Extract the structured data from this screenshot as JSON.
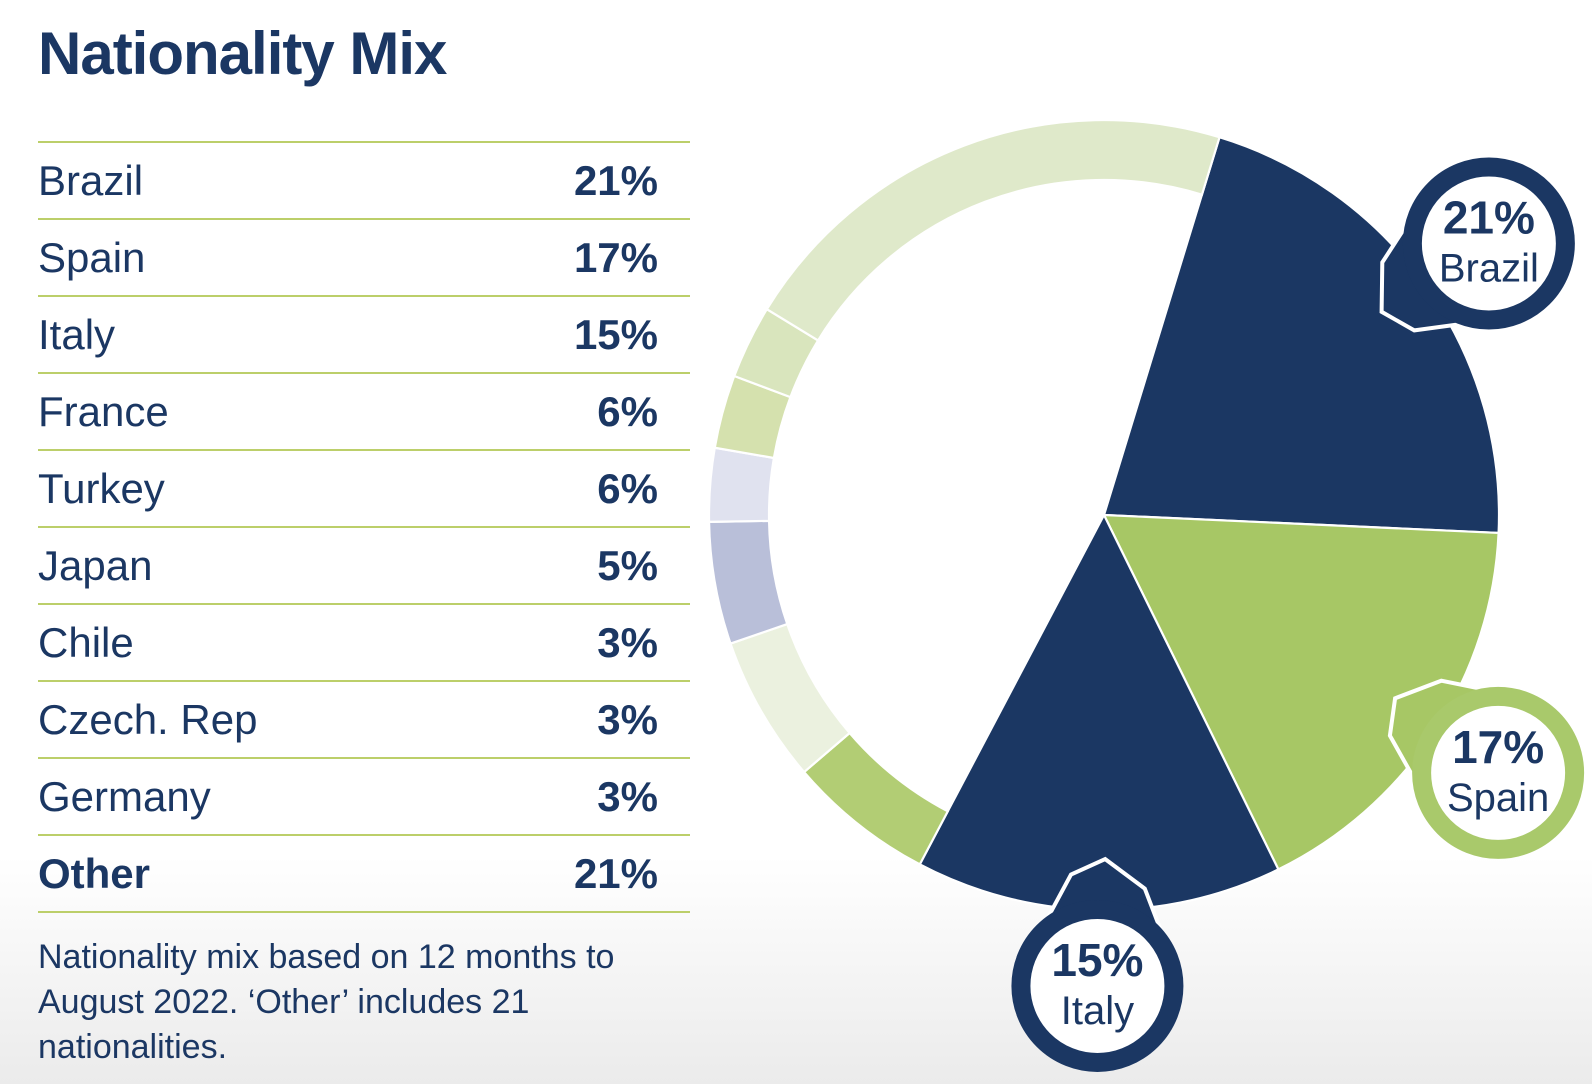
{
  "page": {
    "title": "Nationality Mix"
  },
  "table": {
    "rows": [
      {
        "name": "Brazil",
        "value": "21%",
        "bold": false
      },
      {
        "name": "Spain",
        "value": "17%",
        "bold": false
      },
      {
        "name": "Italy",
        "value": "15%",
        "bold": false
      },
      {
        "name": "France",
        "value": "6%",
        "bold": false
      },
      {
        "name": "Turkey",
        "value": "6%",
        "bold": false
      },
      {
        "name": "Japan",
        "value": "5%",
        "bold": false
      },
      {
        "name": "Chile",
        "value": "3%",
        "bold": false
      },
      {
        "name": "Czech. Rep",
        "value": "3%",
        "bold": false
      },
      {
        "name": "Germany",
        "value": "3%",
        "bold": false
      },
      {
        "name": "Other",
        "value": "21%",
        "bold": true
      }
    ]
  },
  "footnote": "Nationality mix based on 12 months to August 2022. ‘Other’ includes 21 nationalities.",
  "colors": {
    "navy": "#1b3763",
    "divider": "#bccf6a",
    "callout_text": "#1b3763",
    "separator": "#ffffff"
  },
  "chart_data": {
    "type": "pie",
    "title": "Nationality Mix",
    "unit": "percent",
    "start_angle_deg": 17,
    "legend_position": "none",
    "grid": false,
    "categories": [
      "Brazil",
      "Spain",
      "Italy",
      "France",
      "Turkey",
      "Japan",
      "Chile",
      "Czech. Rep",
      "Germany",
      "Other"
    ],
    "values": [
      21,
      17,
      15,
      6,
      6,
      5,
      3,
      3,
      3,
      21
    ],
    "segments": [
      {
        "label": "Brazil",
        "value": 21,
        "display": "wedge",
        "color": "#1b3763",
        "callout": {
          "pct": "21%",
          "name": "Brazil",
          "ring_color": "#1b3763"
        }
      },
      {
        "label": "Spain",
        "value": 17,
        "display": "wedge",
        "color": "#a7c765",
        "callout": {
          "pct": "17%",
          "name": "Spain",
          "ring_color": "#a9c96b"
        }
      },
      {
        "label": "Italy",
        "value": 15,
        "display": "wedge",
        "color": "#1b3763",
        "callout": {
          "pct": "15%",
          "name": "Italy",
          "ring_color": "#1b3763"
        }
      },
      {
        "label": "France",
        "value": 6,
        "display": "ring",
        "color": "#b2cd74"
      },
      {
        "label": "Turkey",
        "value": 6,
        "display": "ring",
        "color": "#ebf1df"
      },
      {
        "label": "Japan",
        "value": 5,
        "display": "ring",
        "color": "#b9bfd9"
      },
      {
        "label": "Chile",
        "value": 3,
        "display": "ring",
        "color": "#e0e2ef"
      },
      {
        "label": "Czech. Rep",
        "value": 3,
        "display": "ring",
        "color": "#d5e1ae"
      },
      {
        "label": "Germany",
        "value": 3,
        "display": "ring",
        "color": "#d9e5bd"
      },
      {
        "label": "Other",
        "value": 21,
        "display": "ring",
        "color": "#dfe9ca"
      }
    ]
  }
}
